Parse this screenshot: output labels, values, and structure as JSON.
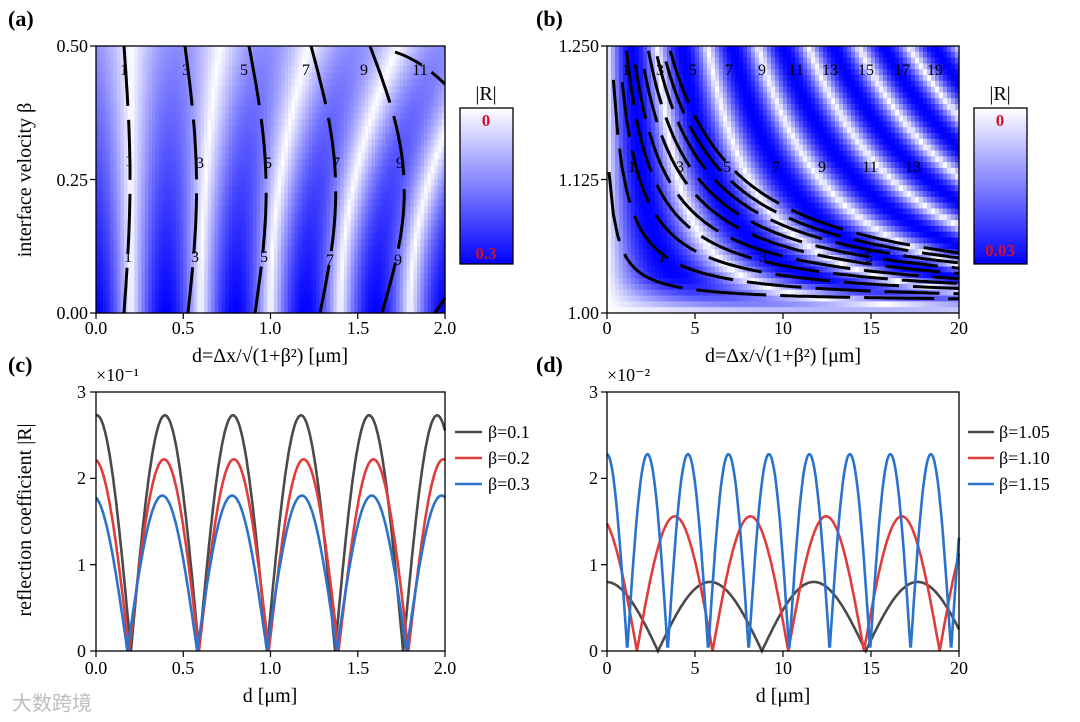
{
  "watermark": "大数跨境",
  "colors": {
    "low": "#ffffff",
    "high": "#0000ff",
    "label_red": "#d0102a",
    "contour": "#000000"
  },
  "chart_data": [
    {
      "id": "a",
      "panel_label": "(a)",
      "type": "heatmap",
      "quantity": "|R|",
      "xlabel": "d=Δx/√(1+β²) [μm]",
      "ylabel": "interface velocity β",
      "xlim": [
        0,
        2.0
      ],
      "ylim": [
        0,
        0.5
      ],
      "xticks": [
        "0.0",
        "0.5",
        "1.0",
        "1.5",
        "2.0"
      ],
      "yticks": [
        "0.00",
        "0.25",
        "0.50"
      ],
      "colorbar": {
        "title": "|R|",
        "min_label": "0",
        "max_label": "0.3",
        "min": 0,
        "max": 0.3
      },
      "contour_labels": [
        "1",
        "3",
        "5",
        "7",
        "9",
        "11"
      ]
    },
    {
      "id": "b",
      "panel_label": "(b)",
      "type": "heatmap",
      "quantity": "|R|",
      "xlabel": "d=Δx/√(1+β²) [μm]",
      "ylabel": "",
      "xlim": [
        0,
        20
      ],
      "ylim": [
        1.0,
        1.25
      ],
      "xticks": [
        "0",
        "5",
        "10",
        "15",
        "20"
      ],
      "yticks": [
        "1.00",
        "1.125",
        "1.250"
      ],
      "colorbar": {
        "title": "|R|",
        "min_label": "0",
        "max_label": "0.03",
        "min": 0,
        "max": 0.03
      },
      "contour_labels": [
        "1",
        "3",
        "5",
        "7",
        "9",
        "11",
        "13",
        "15",
        "17",
        "19"
      ]
    },
    {
      "id": "c",
      "panel_label": "(c)",
      "type": "line",
      "xlabel": "d [μm]",
      "ylabel": "reflection coefficient |R|",
      "scale_label": "×10⁻¹",
      "xlim": [
        0,
        2.0
      ],
      "ylim": [
        0,
        3
      ],
      "xticks": [
        "0.0",
        "0.5",
        "1.0",
        "1.5",
        "2.0"
      ],
      "yticks": [
        "0",
        "1",
        "2",
        "3"
      ],
      "series": [
        {
          "name": "β=0.1",
          "color": "#4a4a4a",
          "amplitude": 2.73,
          "period": 0.39,
          "zero_offset": 0.2
        },
        {
          "name": "β=0.2",
          "color": "#e03c3c",
          "amplitude": 2.22,
          "period": 0.4,
          "zero_offset": 0.19
        },
        {
          "name": "β=0.3",
          "color": "#2a72cc",
          "amplitude": 1.8,
          "period": 0.4,
          "zero_offset": 0.18
        }
      ]
    },
    {
      "id": "d",
      "panel_label": "(d)",
      "type": "line",
      "xlabel": "d [μm]",
      "ylabel": "",
      "scale_label": "×10⁻²",
      "xlim": [
        0,
        20
      ],
      "ylim": [
        0,
        3
      ],
      "xticks": [
        "0",
        "5",
        "10",
        "15",
        "20"
      ],
      "yticks": [
        "0",
        "1",
        "2",
        "3"
      ],
      "series": [
        {
          "name": "β=1.05",
          "color": "#4a4a4a",
          "amplitude": 0.8,
          "period": 5.9,
          "zero_offset": 2.9
        },
        {
          "name": "β=1.10",
          "color": "#e03c3c",
          "amplitude": 1.56,
          "period": 4.3,
          "zero_offset": 1.7
        },
        {
          "name": "β=1.15",
          "color": "#2a72cc",
          "amplitude": 2.28,
          "period": 2.3,
          "zero_offset": 1.15
        }
      ]
    }
  ]
}
